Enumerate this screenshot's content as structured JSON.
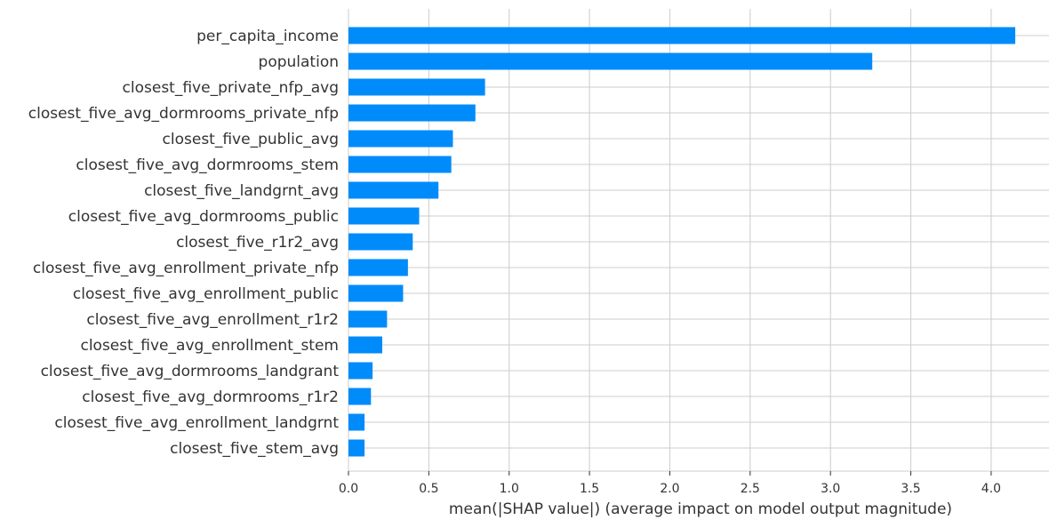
{
  "chart_data": {
    "type": "bar",
    "orientation": "horizontal",
    "categories": [
      "per_capita_income",
      "population",
      "closest_five_private_nfp_avg",
      "closest_five_avg_dormrooms_private_nfp",
      "closest_five_public_avg",
      "closest_five_avg_dormrooms_stem",
      "closest_five_landgrnt_avg",
      "closest_five_avg_dormrooms_public",
      "closest_five_r1r2_avg",
      "closest_five_avg_enrollment_private_nfp",
      "closest_five_avg_enrollment_public",
      "closest_five_avg_enrollment_r1r2",
      "closest_five_avg_enrollment_stem",
      "closest_five_avg_dormrooms_landgrant",
      "closest_five_avg_dormrooms_r1r2",
      "closest_five_avg_enrollment_landgrnt",
      "closest_five_stem_avg"
    ],
    "values": [
      4.15,
      3.26,
      0.85,
      0.79,
      0.65,
      0.64,
      0.56,
      0.44,
      0.4,
      0.37,
      0.34,
      0.24,
      0.21,
      0.15,
      0.14,
      0.1,
      0.1
    ],
    "x_ticks": [
      "0.0",
      "0.5",
      "1.0",
      "1.5",
      "2.0",
      "2.5",
      "3.0",
      "3.5",
      "4.0"
    ],
    "xlim": [
      0,
      4.36
    ],
    "xlabel": "mean(|SHAP value|) (average impact on model output magnitude)",
    "ylabel": "",
    "grid": true,
    "bar_color": "#008bfb",
    "grid_color": "#cccccc"
  }
}
